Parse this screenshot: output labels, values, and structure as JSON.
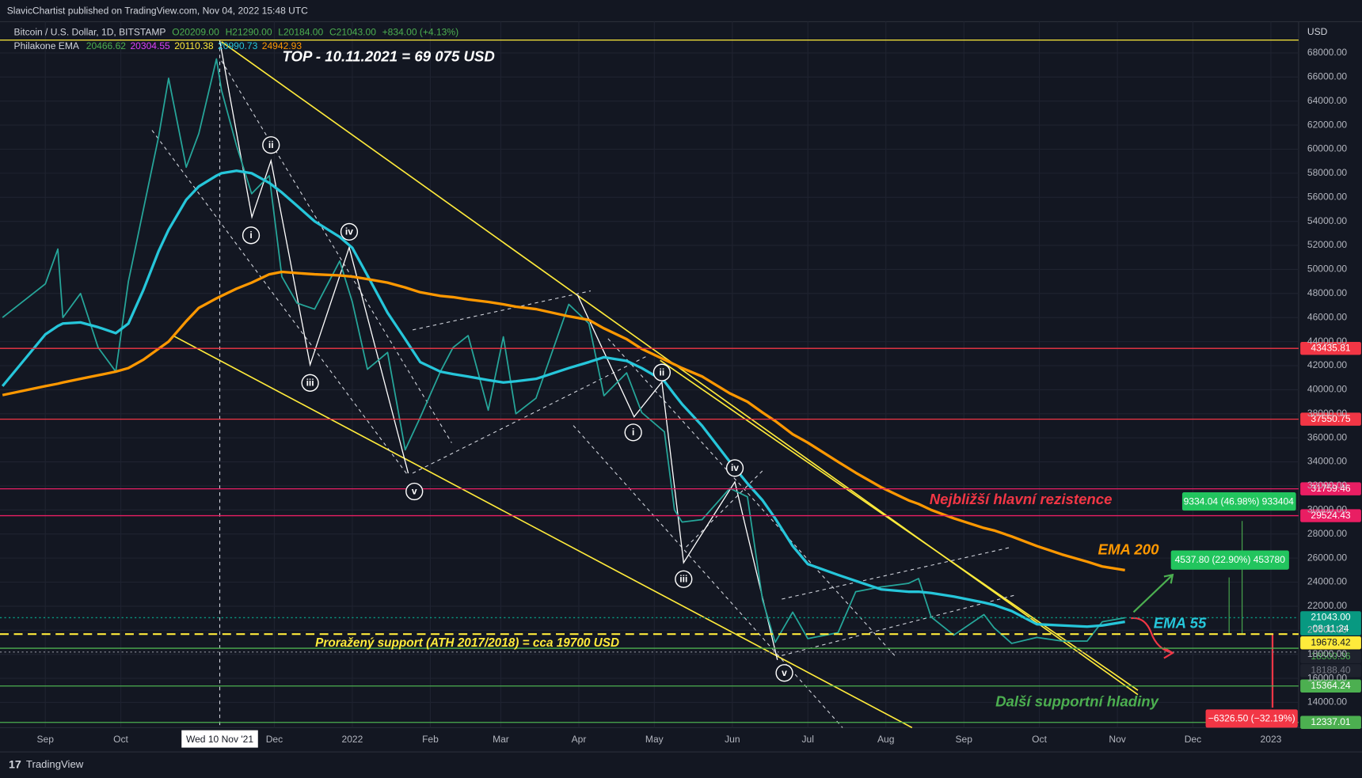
{
  "header": {
    "publisher": "SlavicChartist published on TradingView.com, Nov 04, 2022 15:48 UTC",
    "currency": "USD"
  },
  "legend": {
    "open": "O20209.00",
    "high": "H21290.00",
    "low": "L20184.00",
    "close": "C21043.00",
    "change": "+834.00 (+4.13%)",
    "indicator": "Philakone EMA",
    "indicator_values": [
      {
        "text": "20466.62",
        "color": "#4caf50"
      },
      {
        "text": "20304.55",
        "color": "#e040fb"
      },
      {
        "text": "20110.38",
        "color": "#ffeb3b"
      },
      {
        "text": "20990.73",
        "color": "#26c6da"
      },
      {
        "text": "24942.93",
        "color": "#ff9800"
      }
    ]
  },
  "annotations": {
    "top": "TOP - 10.11.2021 = 69 075 USD",
    "resistance": "Nejbližší hlavní rezistence",
    "support_broken": "Proražený support (ATH 2017/2018) = cca 19700 USD",
    "supports": "Další supportní hladiny",
    "crosshair_date": "Wed 10 Nov '21",
    "waves_a": [
      "i",
      "ii",
      "iii",
      "iv",
      "v"
    ],
    "waves_b": [
      "i",
      "ii",
      "iii",
      "iv",
      "v"
    ],
    "measure_up_big": "9334.04 (46.98%) 933404",
    "measure_up_small": "4537.80 (22.90%) 453780",
    "measure_down": "−6326.50 (−32.19%)"
  },
  "footer": {
    "brand": "TradingView"
  },
  "chart_data": {
    "type": "line",
    "x": [
      "2021-08-15",
      "2021-09-01",
      "2021-09-06",
      "2021-09-08",
      "2021-09-15",
      "2021-09-22",
      "2021-09-29",
      "2021-10-04",
      "2021-10-10",
      "2021-10-16",
      "2021-10-20",
      "2021-10-27",
      "2021-11-01",
      "2021-11-08",
      "2021-11-10",
      "2021-11-16",
      "2021-11-22",
      "2021-11-29",
      "2021-12-04",
      "2021-12-10",
      "2021-12-17",
      "2021-12-27",
      "2022-01-01",
      "2022-01-07",
      "2022-01-15",
      "2022-01-22",
      "2022-01-28",
      "2022-02-05",
      "2022-02-10",
      "2022-02-16",
      "2022-02-24",
      "2022-03-02",
      "2022-03-07",
      "2022-03-15",
      "2022-03-28",
      "2022-04-05",
      "2022-04-11",
      "2022-04-20",
      "2022-04-26",
      "2022-05-05",
      "2022-05-09",
      "2022-05-12",
      "2022-05-20",
      "2022-05-31",
      "2022-06-07",
      "2022-06-13",
      "2022-06-18",
      "2022-06-25",
      "2022-07-01",
      "2022-07-13",
      "2022-07-20",
      "2022-07-30",
      "2022-08-10",
      "2022-08-14",
      "2022-08-19",
      "2022-08-28",
      "2022-09-09",
      "2022-09-13",
      "2022-09-20",
      "2022-09-30",
      "2022-10-10",
      "2022-10-20",
      "2022-10-26",
      "2022-11-04"
    ],
    "series": [
      {
        "name": "Bitcoin / U.S. Dollar, 1D, BITSTAMP",
        "color": "#26a69a",
        "width": 1.6,
        "values": [
          46000,
          48800,
          51700,
          46000,
          48000,
          43500,
          41500,
          49000,
          55000,
          61000,
          65900,
          58500,
          61300,
          67500,
          64900,
          60300,
          56300,
          57800,
          49400,
          47200,
          46700,
          50700,
          47300,
          41700,
          43100,
          35000,
          37700,
          41500,
          43500,
          44500,
          38300,
          44400,
          38000,
          39300,
          47100,
          45500,
          39500,
          41400,
          38100,
          36500,
          30000,
          29000,
          29200,
          31800,
          31100,
          22500,
          19000,
          21500,
          19300,
          19800,
          23200,
          23600,
          23900,
          24300,
          21100,
          19600,
          21300,
          20200,
          18900,
          19400,
          19100,
          19100,
          20700,
          21043
        ]
      },
      {
        "name": "EMA 55",
        "color": "#26c6da",
        "width": 3,
        "values": [
          40300,
          44600,
          45300,
          45500,
          45600,
          45200,
          44700,
          45500,
          48300,
          51500,
          53300,
          55800,
          56900,
          57800,
          58000,
          58200,
          58000,
          57200,
          56400,
          55300,
          54000,
          52700,
          51800,
          49500,
          46400,
          44200,
          42300,
          41500,
          41300,
          41100,
          40800,
          40600,
          40700,
          40900,
          41800,
          42300,
          42700,
          42400,
          41800,
          40700,
          39600,
          38800,
          37000,
          34000,
          32200,
          30800,
          29300,
          27000,
          25500,
          24600,
          24100,
          23400,
          23200,
          23200,
          23100,
          22800,
          22300,
          22100,
          21600,
          20500,
          20400,
          20300,
          20400,
          20700
        ]
      },
      {
        "name": "EMA 200",
        "color": "#ff9800",
        "width": 3,
        "values": [
          39550,
          40300,
          40500,
          40600,
          40900,
          41200,
          41500,
          41800,
          42500,
          43400,
          44000,
          45700,
          46800,
          47600,
          47800,
          48400,
          48900,
          49600,
          49800,
          49700,
          49600,
          49500,
          49400,
          49200,
          48900,
          48500,
          48100,
          47800,
          47700,
          47500,
          47300,
          47100,
          46900,
          46700,
          46100,
          45800,
          45100,
          44200,
          43400,
          42500,
          42100,
          41800,
          41100,
          39700,
          39000,
          38100,
          37400,
          36300,
          35600,
          34000,
          33100,
          31900,
          30800,
          30500,
          30000,
          29300,
          28500,
          28300,
          27800,
          27000,
          26300,
          25700,
          25300,
          25000
        ]
      }
    ],
    "xlim": [
      "2021-08-14",
      "2023-01-12"
    ],
    "xticks": [
      {
        "value": "2021-09-01",
        "label": "Sep"
      },
      {
        "value": "2021-10-01",
        "label": "Oct"
      },
      {
        "value": "2021-12-01",
        "label": "Dec"
      },
      {
        "value": "2022-01-01",
        "label": "2022"
      },
      {
        "value": "2022-02-01",
        "label": "Feb"
      },
      {
        "value": "2022-03-01",
        "label": "Mar"
      },
      {
        "value": "2022-04-01",
        "label": "Apr"
      },
      {
        "value": "2022-05-01",
        "label": "May"
      },
      {
        "value": "2022-06-01",
        "label": "Jun"
      },
      {
        "value": "2022-07-01",
        "label": "Jul"
      },
      {
        "value": "2022-08-01",
        "label": "Aug"
      },
      {
        "value": "2022-09-01",
        "label": "Sep"
      },
      {
        "value": "2022-10-01",
        "label": "Oct"
      },
      {
        "value": "2022-11-01",
        "label": "Nov"
      },
      {
        "value": "2022-12-01",
        "label": "Dec"
      },
      {
        "value": "2023-01-01",
        "label": "2023"
      }
    ],
    "ylim": [
      11900,
      70600
    ],
    "yticks": [
      {
        "value": 14000,
        "label": "14000.00"
      },
      {
        "value": 16000,
        "label": "16000.00"
      },
      {
        "value": 18000,
        "label": "18000.00"
      },
      {
        "value": 20000,
        "label": "20000.00"
      },
      {
        "value": 22000,
        "label": "22000.00"
      },
      {
        "value": 24000,
        "label": "24000.00"
      },
      {
        "value": 26000,
        "label": "26000.00"
      },
      {
        "value": 28000,
        "label": "28000.00"
      },
      {
        "value": 30000,
        "label": "30000.00"
      },
      {
        "value": 32000,
        "label": "32000.00"
      },
      {
        "value": 34000,
        "label": "34000.00"
      },
      {
        "value": 36000,
        "label": "36000.00"
      },
      {
        "value": 38000,
        "label": "38000.00"
      },
      {
        "value": 40000,
        "label": "40000.00"
      },
      {
        "value": 42000,
        "label": "42000.00"
      },
      {
        "value": 44000,
        "label": "44000.00"
      },
      {
        "value": 46000,
        "label": "46000.00"
      },
      {
        "value": 48000,
        "label": "48000.00"
      },
      {
        "value": 50000,
        "label": "50000.00"
      },
      {
        "value": 52000,
        "label": "52000.00"
      },
      {
        "value": 54000,
        "label": "54000.00"
      },
      {
        "value": 56000,
        "label": "56000.00"
      },
      {
        "value": 58000,
        "label": "58000.00"
      },
      {
        "value": 60000,
        "label": "60000.00"
      },
      {
        "value": 62000,
        "label": "62000.00"
      },
      {
        "value": 64000,
        "label": "64000.00"
      },
      {
        "value": 66000,
        "label": "66000.00"
      },
      {
        "value": 68000,
        "label": "68000.00"
      }
    ],
    "grid": true,
    "levels": [
      {
        "value": 69075,
        "color": "#ffeb3b",
        "style": "solid",
        "tag": false
      },
      {
        "value": 43435.81,
        "color": "#f23645",
        "style": "solid",
        "tag": true
      },
      {
        "value": 37550.75,
        "color": "#f23645",
        "style": "solid",
        "tag": true
      },
      {
        "value": 31759.46,
        "color": "#e91e63",
        "style": "solid",
        "tag": true
      },
      {
        "value": 29524.43,
        "color": "#e91e63",
        "style": "solid",
        "tag": true
      },
      {
        "value": 21043,
        "label": "21043.00",
        "sublabel": "08:11:24",
        "color": "#089981",
        "style": "dotted",
        "tag": true
      },
      {
        "value": 19678.42,
        "color": "#ffeb3b",
        "style": "dashed",
        "tag": true,
        "text_color": "#131722"
      },
      {
        "value": 18500.36,
        "color": "#4caf50",
        "style": "solid",
        "tag": true,
        "tag_fill": "#1e222d"
      },
      {
        "value": 18188.4,
        "label": "18188.40",
        "color": "#787b86",
        "style": "dotted",
        "tag": true,
        "tag_fill": "#1e222d"
      },
      {
        "value": 15364.24,
        "color": "#4caf50",
        "style": "solid",
        "tag": true
      },
      {
        "value": 12337.01,
        "color": "#4caf50",
        "style": "solid",
        "tag": true
      }
    ]
  }
}
